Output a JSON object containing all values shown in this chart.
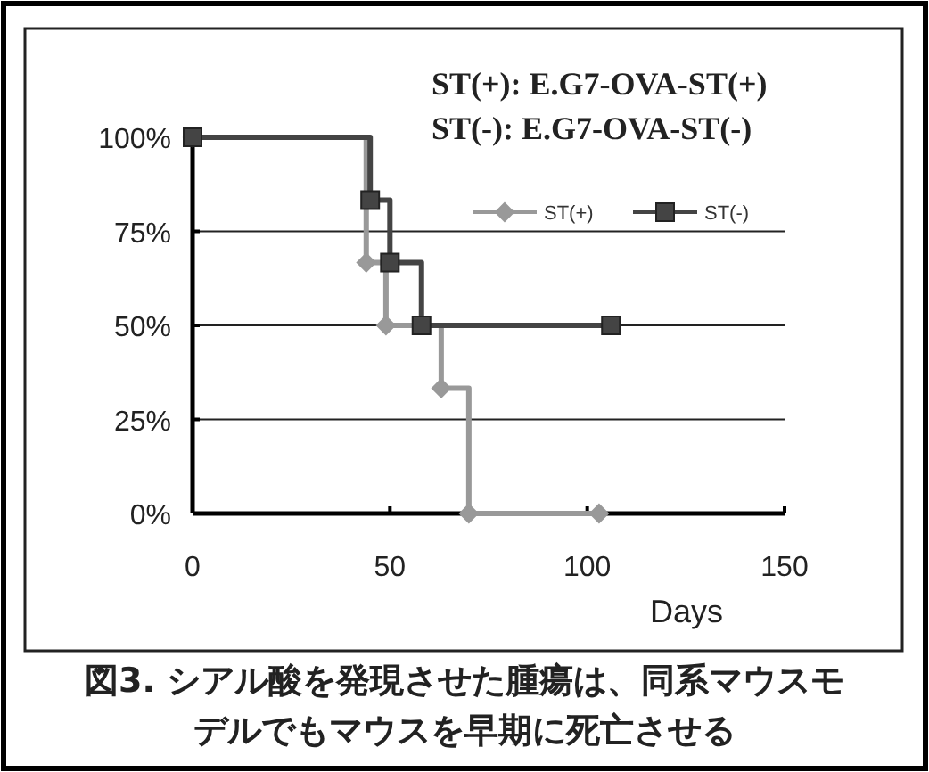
{
  "chart_data": {
    "type": "step",
    "xlabel": "Days",
    "annotations": [
      "ST(+): E.G7-OVA-ST(+)",
      "ST(-): E.G7-OVA-ST(-)",
      "図3. シアル酸を発現させた腫瘍は、同系マウスモデルでもマウスを早期に死亡させる"
    ],
    "xlim": [
      0,
      150
    ],
    "xticks": [
      0,
      50,
      100,
      150
    ],
    "ylim": [
      0,
      100
    ],
    "yticks": [
      {
        "value": 0,
        "label": "0%"
      },
      {
        "value": 25,
        "label": "25%"
      },
      {
        "value": 50,
        "label": "50%"
      },
      {
        "value": 75,
        "label": "75%"
      },
      {
        "value": 100,
        "label": "100%"
      }
    ],
    "grid": "y",
    "legend": "top right",
    "series": [
      {
        "name": "ST(+)",
        "color": "#999999",
        "marker": "diamond",
        "x": [
          0,
          44,
          49,
          63,
          70,
          103
        ],
        "values": [
          100,
          66.7,
          50,
          33.3,
          0,
          0
        ]
      },
      {
        "name": "ST(-)",
        "color": "#444444",
        "marker": "square",
        "x": [
          0,
          45,
          50,
          58,
          106
        ],
        "values": [
          100,
          83.3,
          66.7,
          50,
          50
        ]
      }
    ]
  }
}
